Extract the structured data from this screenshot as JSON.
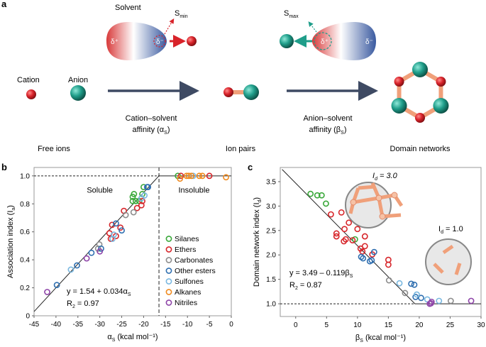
{
  "panel_a": {
    "label": "a",
    "solvent_label": "Solvent",
    "s_min": "S",
    "s_min_sub": "min",
    "s_max": "S",
    "s_max_sub": "max",
    "delta_plus": "δ⁺",
    "delta_minus": "δ⁻",
    "cation": "Cation",
    "anion": "Anion",
    "arrow1_line1": "Cation–solvent",
    "arrow1_line2": "affinity (α",
    "arrow1_sub": "S",
    "arrow2_line1": "Anion–solvent",
    "arrow2_line2": "affinity (β",
    "arrow2_sub": "S",
    "stage1": "Free ions",
    "stage2": "Ion pairs",
    "stage3": "Domain networks",
    "colors": {
      "cation": "#d8232a",
      "anion": "#1f9e8a",
      "arrow": "#3e4a63",
      "bond": "#f0a07a"
    }
  },
  "chart_data": [
    {
      "type": "scatter",
      "panel": "b",
      "xlabel": "α",
      "xlabel_sub": "S",
      "xlabel_unit": " (kcal mol⁻¹)",
      "ylabel": "Association index (I",
      "ylabel_sub": "a",
      "xlim": [
        -45,
        0
      ],
      "ylim": [
        0,
        1.06
      ],
      "xticks": [
        -45,
        -40,
        -35,
        -30,
        -25,
        -20,
        -15,
        -10,
        -5,
        0
      ],
      "yticks": [
        0,
        0.2,
        0.4,
        0.6,
        0.8,
        1.0
      ],
      "ytick_labels": [
        "0",
        "0.2",
        "0.4",
        "0.6",
        "0.8",
        "1.0"
      ],
      "region_left": "Soluble",
      "region_right": "Insoluble",
      "threshold_x": -16.5,
      "fit": {
        "equation": "y = 1.54 + 0.034α",
        "equation_sub": "S",
        "r2": "R",
        "r2_sub": "2",
        "r2_value": " = 0.97",
        "intercept": 1.54,
        "slope": 0.034
      },
      "legend_position": "right",
      "series": [
        {
          "name": "Silanes",
          "color": "#3aa83a",
          "points": [
            [
              -12.2,
              1.0
            ],
            [
              -22.5,
              0.85
            ],
            [
              -22.2,
              0.87
            ],
            [
              -21.8,
              0.82
            ],
            [
              -21,
              0.82
            ],
            [
              -20.3,
              0.87
            ],
            [
              -20,
              0.92
            ],
            [
              -22.5,
              0.82
            ]
          ]
        },
        {
          "name": "Ethers",
          "color": "#d7262b",
          "points": [
            [
              -11.5,
              1.0
            ],
            [
              -5,
              1.0
            ],
            [
              -24.5,
              0.75
            ],
            [
              -21.5,
              0.77
            ],
            [
              -20.5,
              0.79
            ],
            [
              -20.3,
              0.82
            ],
            [
              -27.2,
              0.65
            ],
            [
              -25.3,
              0.63
            ],
            [
              -27.8,
              0.59
            ],
            [
              -27.5,
              0.55
            ],
            [
              -26.3,
              0.57
            ]
          ]
        },
        {
          "name": "Carbonates",
          "color": "#8c8c8c",
          "points": [
            [
              -24.1,
              0.72
            ],
            [
              -22.3,
              0.74
            ],
            [
              -30.1,
              0.51
            ],
            [
              -30.4,
              0.48
            ]
          ]
        },
        {
          "name": "Other esters",
          "color": "#2f6fb0",
          "points": [
            [
              -19.2,
              0.92
            ],
            [
              -19,
              0.92
            ],
            [
              -26.3,
              0.66
            ],
            [
              -25,
              0.61
            ],
            [
              -29.7,
              0.48
            ],
            [
              -31.9,
              0.45
            ],
            [
              -35.2,
              0.36
            ],
            [
              -39.8,
              0.22
            ]
          ]
        },
        {
          "name": "Sulfones",
          "color": "#7ab8e0",
          "points": [
            [
              -8.7,
              1.0
            ],
            [
              -20.5,
              0.84
            ],
            [
              -19.8,
              0.86
            ],
            [
              -26.8,
              0.58
            ],
            [
              -27.1,
              0.55
            ],
            [
              -36.6,
              0.33
            ]
          ]
        },
        {
          "name": "Alkanes",
          "color": "#f08a1e",
          "points": [
            [
              -11.7,
              0.98
            ],
            [
              -10.2,
              1.0
            ],
            [
              -9.7,
              1.0
            ],
            [
              -9.1,
              1.0
            ],
            [
              -7.3,
              1.0
            ],
            [
              -6.6,
              1.0
            ],
            [
              -1.2,
              0.99
            ]
          ]
        },
        {
          "name": "Nitriles",
          "color": "#8e44a8",
          "points": [
            [
              -33,
              0.41
            ],
            [
              -30,
              0.46
            ],
            [
              -42,
              0.17
            ]
          ]
        }
      ]
    },
    {
      "type": "scatter",
      "panel": "c",
      "xlabel": "β",
      "xlabel_sub": "S",
      "xlabel_unit": " (kcal mol⁻¹)",
      "ylabel": "Domain network index (I",
      "ylabel_sub": "d",
      "xlim": [
        -2.5,
        30
      ],
      "ylim": [
        0.74,
        3.79
      ],
      "xticks": [
        0,
        5,
        10,
        15,
        20,
        25,
        30
      ],
      "yticks": [
        1.0,
        1.5,
        2.0,
        2.5,
        3.0,
        3.5
      ],
      "ytick_labels": [
        "1.0",
        "1.5",
        "2.0",
        "2.5",
        "3.0",
        "3.5"
      ],
      "fit": {
        "equation": "y = 3.49 – 0.119β",
        "equation_sub": "S",
        "r2": "R",
        "r2_sub": "2",
        "r2_value": " = 0.87",
        "intercept": 3.49,
        "slope": -0.119,
        "break_x": 19.3
      },
      "inset_high": {
        "label": "I",
        "label_sub": "d",
        "value": " = 3.0"
      },
      "inset_low": {
        "label": "I",
        "label_sub": "d",
        "value": " = 1.0"
      },
      "series": [
        {
          "name": "Silanes",
          "color": "#3aa83a",
          "points": [
            [
              2.4,
              3.25
            ],
            [
              3.5,
              3.22
            ],
            [
              4.2,
              3.22
            ],
            [
              4.9,
              3.05
            ],
            [
              9.6,
              2.32
            ]
          ]
        },
        {
          "name": "Ethers",
          "color": "#d7262b",
          "points": [
            [
              5.7,
              2.83
            ],
            [
              7.4,
              2.87
            ],
            [
              8.6,
              2.66
            ],
            [
              7.9,
              2.53
            ],
            [
              10,
              2.53
            ],
            [
              6.6,
              2.44
            ],
            [
              6.6,
              2.38
            ],
            [
              7.8,
              2.28
            ],
            [
              8.1,
              2.32
            ],
            [
              9.2,
              2.3
            ],
            [
              11.2,
              2.38
            ],
            [
              10.5,
              2.13
            ],
            [
              10.8,
              2.07
            ],
            [
              11.2,
              2.18
            ],
            [
              12.4,
              2.01
            ],
            [
              15,
              1.9
            ],
            [
              15,
              1.8
            ]
          ]
        },
        {
          "name": "Carbonates",
          "color": "#8c8c8c",
          "points": [
            [
              15.1,
              1.48
            ],
            [
              17.7,
              1.22
            ],
            [
              25.1,
              1.06
            ]
          ]
        },
        {
          "name": "Other esters",
          "color": "#2f6fb0",
          "points": [
            [
              10.6,
              1.96
            ],
            [
              10.9,
              1.93
            ],
            [
              12,
              1.87
            ],
            [
              12.3,
              1.89
            ],
            [
              12.7,
              2.06
            ],
            [
              18.7,
              1.41
            ],
            [
              19.2,
              1.39
            ],
            [
              20.3,
              1.12
            ],
            [
              19.4,
              1.14
            ]
          ]
        },
        {
          "name": "Sulfones",
          "color": "#7ab8e0",
          "points": [
            [
              16.8,
              1.42
            ],
            [
              19.6,
              1.19
            ],
            [
              21.3,
              1.09
            ],
            [
              23.2,
              1.06
            ]
          ]
        },
        {
          "name": "Nitriles",
          "color": "#8e44a8",
          "points": [
            [
              21.7,
              1.0
            ],
            [
              22,
              1.04
            ],
            [
              28.4,
              1.06
            ],
            [
              21.9,
              1.01
            ]
          ]
        }
      ]
    }
  ]
}
